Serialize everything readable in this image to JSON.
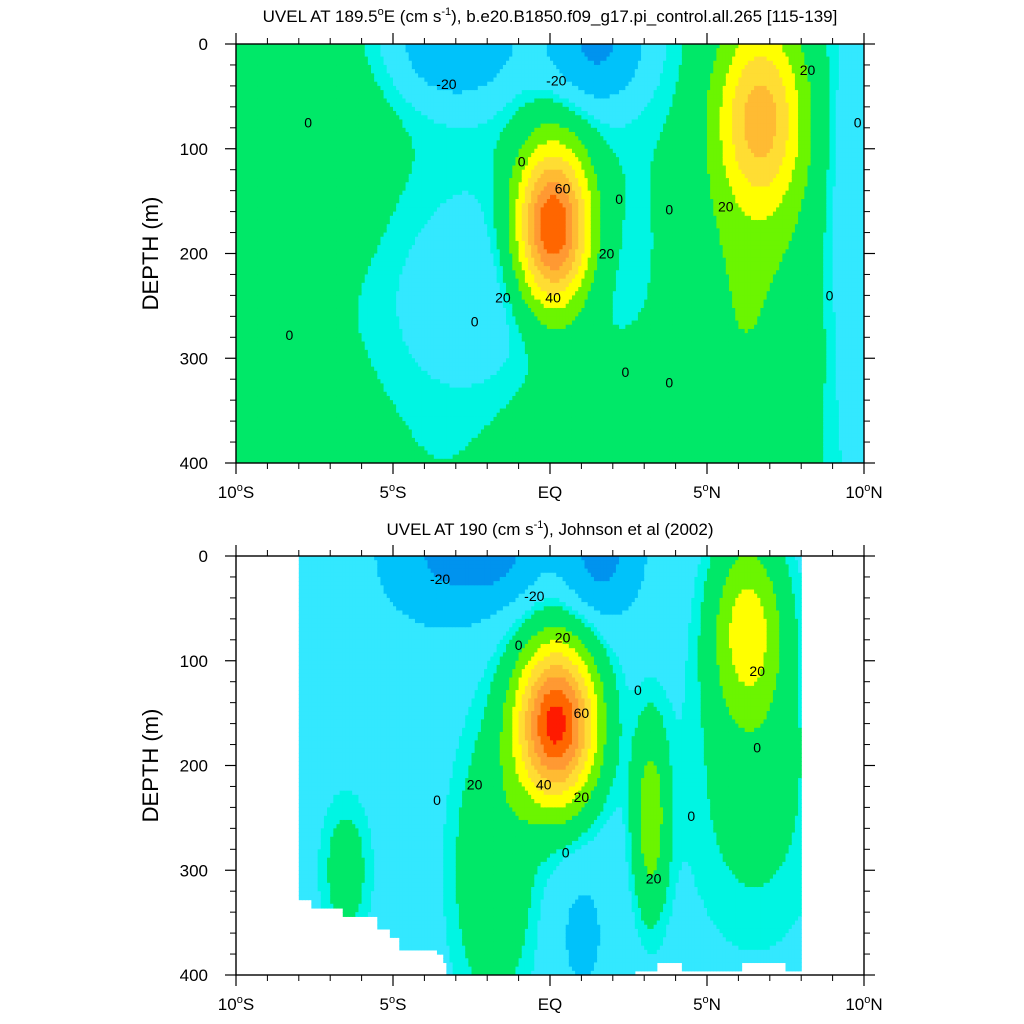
{
  "colors": {
    "levels": [
      "#0093ee",
      "#00c2fa",
      "#33e8ff",
      "#00f5e3",
      "#00f2b9",
      "#00e868",
      "#6bf500",
      "#ffff00",
      "#ffdd33",
      "#ffbb33",
      "#ff9933",
      "#ff6600",
      "#ff1a00"
    ],
    "missing": "#ffffff",
    "contour_line": "#222222"
  },
  "chart_data": [
    {
      "type": "heatmap",
      "title_html": "UVEL AT 189.5<sup>o</sup>E (cm s<sup>-1</sup>), b.e20.B1850.f09_g17.pi_control.all.265 [115-139]",
      "title_parts": [
        "UVEL AT 189.5",
        "o",
        "E (cm s",
        "-1",
        "), b.e20.B1850.f09_g17.pi_control.all.265 [115-139]"
      ],
      "ylabel": "DEPTH (m)",
      "xlim": [
        -10,
        10
      ],
      "ylim": [
        400,
        0
      ],
      "x_ticks": [
        -10,
        -5,
        0,
        5,
        10
      ],
      "x_tick_labels": [
        [
          "10",
          "o",
          "S"
        ],
        [
          "5",
          "o",
          "S"
        ],
        [
          "EQ",
          "",
          ""
        ],
        [
          "5",
          "o",
          "N"
        ],
        [
          "10",
          "o",
          "N"
        ]
      ],
      "y_ticks": [
        0,
        100,
        200,
        300,
        400
      ],
      "contour_interval": 10,
      "data_lon": [
        -10,
        10
      ],
      "features": [
        {
          "kind": "base",
          "value": 0
        },
        {
          "kind": "blob",
          "x": -7.5,
          "y": 110,
          "sx": 2.4,
          "sy": 120,
          "amp": 8
        },
        {
          "kind": "blob",
          "x": -8.5,
          "y": 400,
          "sx": 2.8,
          "sy": 110,
          "amp": 9
        },
        {
          "kind": "blob",
          "x": -3,
          "y": 0,
          "sx": 2.0,
          "sy": 55,
          "amp": -20
        },
        {
          "kind": "blob",
          "x": 1.5,
          "y": 0,
          "sx": 1.6,
          "sy": 60,
          "amp": -22
        },
        {
          "kind": "blob",
          "x": -1.5,
          "y": 240,
          "sx": 4.0,
          "sy": 110,
          "amp": -8
        },
        {
          "kind": "blob",
          "x": 0.1,
          "y": 175,
          "sx": 1.15,
          "sy": 75,
          "amp": 74
        },
        {
          "kind": "blob",
          "x": 6.7,
          "y": 70,
          "sx": 1.35,
          "sy": 90,
          "amp": 44
        },
        {
          "kind": "blob",
          "x": 6.2,
          "y": 260,
          "sx": 2.2,
          "sy": 150,
          "amp": 10
        },
        {
          "kind": "blob",
          "x": 1.0,
          "y": 400,
          "sx": 2.6,
          "sy": 120,
          "amp": 9
        },
        {
          "kind": "blob",
          "x": 9.7,
          "y": 180,
          "sx": 0.9,
          "sy": 260,
          "amp": -9
        }
      ],
      "contour_labels": [
        {
          "text": "-20",
          "lon": -3.3,
          "depth": 38
        },
        {
          "text": "-20",
          "lon": 0.2,
          "depth": 35
        },
        {
          "text": "0",
          "lon": -7.7,
          "depth": 75
        },
        {
          "text": "0",
          "lon": -0.9,
          "depth": 112
        },
        {
          "text": "0",
          "lon": 2.2,
          "depth": 148
        },
        {
          "text": "0",
          "lon": 3.8,
          "depth": 158
        },
        {
          "text": "0",
          "lon": -8.3,
          "depth": 278
        },
        {
          "text": "0",
          "lon": -2.4,
          "depth": 265
        },
        {
          "text": "0",
          "lon": 2.4,
          "depth": 313
        },
        {
          "text": "0",
          "lon": 3.8,
          "depth": 323
        },
        {
          "text": "0",
          "lon": 8.9,
          "depth": 240
        },
        {
          "text": "0",
          "lon": 9.8,
          "depth": 75
        },
        {
          "text": "60",
          "lon": 0.4,
          "depth": 138
        },
        {
          "text": "20",
          "lon": -1.5,
          "depth": 242
        },
        {
          "text": "40",
          "lon": 0.1,
          "depth": 242
        },
        {
          "text": "20",
          "lon": 1.8,
          "depth": 200
        },
        {
          "text": "20",
          "lon": 5.6,
          "depth": 155
        },
        {
          "text": "20",
          "lon": 8.2,
          "depth": 25
        }
      ],
      "mask_steps": []
    },
    {
      "type": "heatmap",
      "title_html": "UVEL AT 190 (cm s<sup>-1</sup>), Johnson et al (2002)",
      "title_parts": [
        "UVEL AT 190 (cm s",
        "-1",
        "), Johnson et al (2002)",
        "",
        ""
      ],
      "ylabel": "DEPTH (m)",
      "xlim": [
        -10,
        10
      ],
      "ylim": [
        400,
        0
      ],
      "x_ticks": [
        -10,
        -5,
        0,
        5,
        10
      ],
      "x_tick_labels": [
        [
          "10",
          "o",
          "S"
        ],
        [
          "5",
          "o",
          "S"
        ],
        [
          "EQ",
          "",
          ""
        ],
        [
          "5",
          "o",
          "N"
        ],
        [
          "10",
          "o",
          "N"
        ]
      ],
      "y_ticks": [
        0,
        100,
        200,
        300,
        400
      ],
      "contour_interval": 10,
      "data_lon": [
        -8,
        8
      ],
      "features": [
        {
          "kind": "base",
          "value": -6
        },
        {
          "kind": "blob",
          "x": -3.2,
          "y": 0,
          "sx": 2.0,
          "sy": 60,
          "amp": -16
        },
        {
          "kind": "blob",
          "x": 1.6,
          "y": 0,
          "sx": 1.2,
          "sy": 55,
          "amp": -18
        },
        {
          "kind": "blob",
          "x": -1.5,
          "y": 0,
          "sx": 1.2,
          "sy": 40,
          "amp": -10
        },
        {
          "kind": "blob",
          "x": 0.2,
          "y": 160,
          "sx": 1.25,
          "sy": 75,
          "amp": 80
        },
        {
          "kind": "blob",
          "x": -1.8,
          "y": 300,
          "sx": 1.3,
          "sy": 130,
          "amp": 14
        },
        {
          "kind": "blob",
          "x": 3.2,
          "y": 250,
          "sx": 0.55,
          "sy": 90,
          "amp": 22
        },
        {
          "kind": "blob",
          "x": 6.3,
          "y": 70,
          "sx": 1.1,
          "sy": 85,
          "amp": 30
        },
        {
          "kind": "blob",
          "x": 6.5,
          "y": 220,
          "sx": 2.2,
          "sy": 150,
          "amp": 9
        },
        {
          "kind": "blob",
          "x": 1.0,
          "y": 360,
          "sx": 0.9,
          "sy": 70,
          "amp": -6
        },
        {
          "kind": "blob",
          "x": -6.5,
          "y": 300,
          "sx": 0.8,
          "sy": 70,
          "amp": 10
        }
      ],
      "contour_labels": [
        {
          "text": "-20",
          "lon": -3.5,
          "depth": 22
        },
        {
          "text": "-20",
          "lon": -0.5,
          "depth": 38
        },
        {
          "text": "20",
          "lon": 0.4,
          "depth": 78
        },
        {
          "text": "0",
          "lon": -1.0,
          "depth": 85
        },
        {
          "text": "60",
          "lon": 1.0,
          "depth": 150
        },
        {
          "text": "0",
          "lon": 2.8,
          "depth": 128
        },
        {
          "text": "20",
          "lon": 6.6,
          "depth": 110
        },
        {
          "text": "0",
          "lon": 6.6,
          "depth": 183
        },
        {
          "text": "20",
          "lon": -2.4,
          "depth": 218
        },
        {
          "text": "40",
          "lon": -0.2,
          "depth": 218
        },
        {
          "text": "20",
          "lon": 1.0,
          "depth": 230
        },
        {
          "text": "0",
          "lon": -3.6,
          "depth": 233
        },
        {
          "text": "0",
          "lon": 4.5,
          "depth": 248
        },
        {
          "text": "0",
          "lon": 0.5,
          "depth": 283
        },
        {
          "text": "20",
          "lon": 3.3,
          "depth": 308
        }
      ],
      "mask_steps": [
        {
          "lon": -8.0,
          "depth": 330
        },
        {
          "lon": -7.6,
          "depth": 335
        },
        {
          "lon": -6.6,
          "depth": 345
        },
        {
          "lon": -5.5,
          "depth": 355
        },
        {
          "lon": -5.1,
          "depth": 365
        },
        {
          "lon": -4.8,
          "depth": 375
        },
        {
          "lon": -3.6,
          "depth": 380
        },
        {
          "lon": -3.4,
          "depth": 390
        },
        {
          "lon": -3.3,
          "depth": 400
        }
      ],
      "mask_steps_right": [
        {
          "lon": 2.7,
          "depth": 395
        },
        {
          "lon": 3.4,
          "depth": 390
        },
        {
          "lon": 4.2,
          "depth": 395
        },
        {
          "lon": 5.6,
          "depth": 398
        },
        {
          "lon": 6.1,
          "depth": 390
        },
        {
          "lon": 7.5,
          "depth": 395
        }
      ]
    }
  ]
}
